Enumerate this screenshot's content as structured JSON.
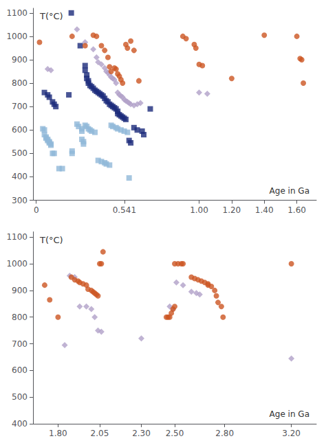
{
  "chart_data": [
    {
      "type": "scatter",
      "xlabel": "Age in Ga",
      "ylabel": "T(°C)",
      "xlim": [
        -0.02,
        1.72
      ],
      "ylim": [
        300,
        1120
      ],
      "xticks": [
        0,
        0.541,
        {
          "value": 1.0,
          "label": "1.00"
        },
        {
          "value": 1.2,
          "label": "1.20"
        },
        {
          "value": 1.4,
          "label": "1.40"
        },
        {
          "value": 1.6,
          "label": "1.60"
        }
      ],
      "yticks": [
        300,
        400,
        500,
        600,
        700,
        800,
        900,
        1000,
        1100
      ],
      "grid": false,
      "series": [
        {
          "color": "#90b8d8",
          "marker": "square",
          "x": [
            0.04,
            0.05,
            0.05,
            0.06,
            0.06,
            0.07,
            0.07,
            0.08,
            0.08,
            0.09,
            0.09,
            0.1,
            0.11,
            0.14,
            0.16,
            0.22,
            0.22,
            0.25,
            0.26,
            0.28,
            0.28,
            0.28,
            0.29,
            0.29,
            0.3,
            0.31,
            0.32,
            0.33,
            0.34,
            0.36,
            0.38,
            0.4,
            0.42,
            0.43,
            0.45,
            0.46,
            0.47,
            0.49,
            0.5,
            0.52,
            0.54,
            0.56,
            0.57
          ],
          "values": [
            605,
            600,
            580,
            570,
            565,
            560,
            555,
            550,
            545,
            540,
            535,
            500,
            500,
            435,
            435,
            510,
            500,
            625,
            615,
            605,
            595,
            560,
            550,
            540,
            620,
            615,
            605,
            600,
            595,
            590,
            470,
            465,
            460,
            455,
            450,
            620,
            615,
            610,
            605,
            600,
            595,
            590,
            395
          ]
        },
        {
          "color": "#1c2a7a",
          "marker": "square",
          "x": [
            0.215,
            0.05,
            0.07,
            0.08,
            0.1,
            0.11,
            0.12,
            0.2,
            0.27,
            0.3,
            0.3,
            0.31,
            0.31,
            0.32,
            0.32,
            0.33,
            0.34,
            0.35,
            0.36,
            0.37,
            0.38,
            0.39,
            0.4,
            0.41,
            0.42,
            0.43,
            0.44,
            0.45,
            0.46,
            0.47,
            0.48,
            0.49,
            0.5,
            0.5,
            0.51,
            0.52,
            0.53,
            0.54,
            0.55,
            0.57,
            0.58,
            0.6,
            0.62,
            0.65,
            0.66,
            0.7
          ],
          "values": [
            1100,
            760,
            750,
            740,
            720,
            710,
            700,
            750,
            960,
            875,
            855,
            835,
            820,
            810,
            800,
            790,
            785,
            778,
            770,
            765,
            760,
            755,
            750,
            745,
            735,
            725,
            720,
            710,
            705,
            700,
            695,
            690,
            680,
            670,
            665,
            660,
            655,
            650,
            645,
            555,
            545,
            610,
            600,
            595,
            580,
            690
          ]
        },
        {
          "color": "#b0a0c8",
          "marker": "diamond",
          "x": [
            0.07,
            0.09,
            0.25,
            0.3,
            0.35,
            0.37,
            0.38,
            0.4,
            0.42,
            0.43,
            0.44,
            0.45,
            0.46,
            0.47,
            0.48,
            0.49,
            0.5,
            0.51,
            0.52,
            0.53,
            0.54,
            0.55,
            0.56,
            0.57,
            0.58,
            0.6,
            0.62,
            0.64,
            1.0,
            1.05
          ],
          "values": [
            860,
            855,
            1030,
            975,
            945,
            910,
            890,
            880,
            865,
            850,
            845,
            835,
            825,
            820,
            815,
            800,
            760,
            750,
            745,
            740,
            730,
            725,
            720,
            715,
            710,
            705,
            710,
            715,
            760,
            755
          ]
        },
        {
          "color": "#cc5522",
          "marker": "circle",
          "x": [
            0.02,
            0.22,
            0.3,
            0.35,
            0.37,
            0.4,
            0.42,
            0.44,
            0.45,
            0.46,
            0.48,
            0.49,
            0.5,
            0.51,
            0.52,
            0.53,
            0.55,
            0.56,
            0.58,
            0.6,
            0.63,
            0.9,
            0.92,
            0.97,
            0.98,
            1.0,
            1.02,
            1.2,
            1.4,
            1.6,
            1.62,
            1.63,
            1.64
          ],
          "values": [
            975,
            1000,
            960,
            1005,
            1000,
            960,
            940,
            910,
            870,
            850,
            865,
            860,
            840,
            830,
            815,
            800,
            965,
            950,
            980,
            940,
            810,
            1000,
            990,
            965,
            950,
            880,
            875,
            820,
            1005,
            1000,
            905,
            900,
            800
          ]
        }
      ]
    },
    {
      "type": "scatter",
      "xlabel": "Age in Ga",
      "ylabel": "T(°C)",
      "xlim": [
        1.65,
        3.35
      ],
      "ylim": [
        400,
        1120
      ],
      "xticks": [
        {
          "value": 1.8,
          "label": "1.80"
        },
        2.05,
        {
          "value": 2.3,
          "label": "2.30"
        },
        {
          "value": 2.5,
          "label": "2.50"
        },
        {
          "value": 2.8,
          "label": "2.80"
        },
        {
          "value": 3.2,
          "label": "3.20"
        }
      ],
      "yticks": [
        400,
        500,
        600,
        700,
        800,
        900,
        1000,
        1100
      ],
      "grid": false,
      "series": [
        {
          "color": "#b0a0c8",
          "marker": "diamond",
          "x": [
            1.87,
            1.9,
            1.93,
            1.97,
            2.0,
            2.02,
            2.04,
            2.06,
            1.84,
            2.47,
            2.49,
            2.51,
            2.55,
            2.6,
            2.63,
            2.65,
            2.3,
            3.2
          ],
          "values": [
            955,
            950,
            840,
            840,
            830,
            800,
            750,
            745,
            695,
            840,
            830,
            930,
            920,
            895,
            890,
            885,
            720,
            645
          ]
        },
        {
          "color": "#cc5522",
          "marker": "circle",
          "x": [
            1.72,
            1.75,
            1.8,
            1.88,
            1.9,
            1.92,
            1.93,
            1.95,
            1.97,
            1.98,
            2.0,
            2.01,
            2.02,
            2.03,
            2.04,
            2.05,
            2.06,
            2.07,
            2.45,
            2.46,
            2.47,
            2.48,
            2.49,
            2.5,
            2.5,
            2.52,
            2.54,
            2.55,
            2.6,
            2.62,
            2.64,
            2.66,
            2.68,
            2.7,
            2.7,
            2.72,
            2.74,
            2.75,
            2.76,
            2.78,
            2.79,
            3.2
          ],
          "values": [
            920,
            865,
            800,
            950,
            940,
            935,
            930,
            925,
            920,
            905,
            900,
            895,
            890,
            885,
            880,
            1000,
            1000,
            1045,
            800,
            800,
            800,
            815,
            830,
            840,
            1000,
            1000,
            1000,
            1000,
            950,
            945,
            940,
            935,
            930,
            925,
            920,
            915,
            900,
            880,
            855,
            840,
            800,
            1000
          ]
        }
      ]
    }
  ]
}
